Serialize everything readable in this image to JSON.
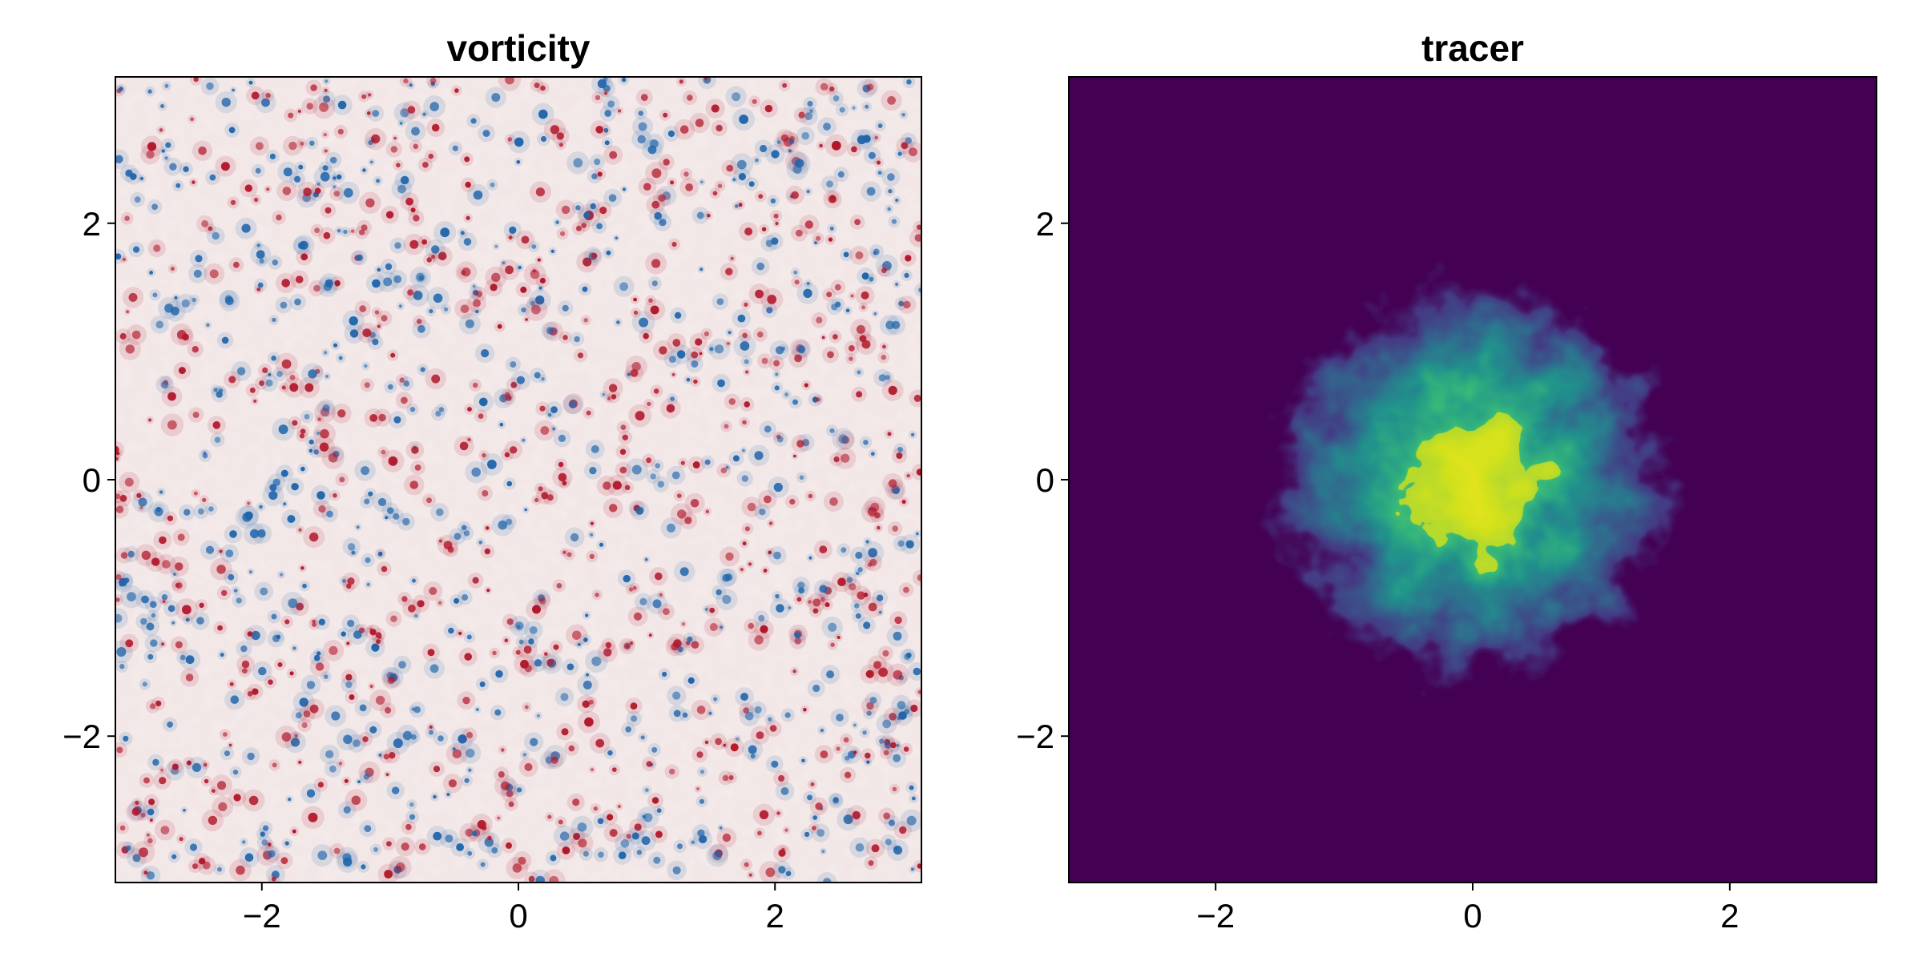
{
  "chart_data": [
    {
      "type": "heatmap",
      "title": "vorticity",
      "xlabel": "",
      "ylabel": "",
      "xlim": [
        -3.14159,
        3.14159
      ],
      "ylim": [
        -3.14159,
        3.14159
      ],
      "xticks": [
        -2,
        0,
        2
      ],
      "yticks": [
        -2,
        0,
        2
      ],
      "xtick_labels": [
        "−2",
        "0",
        "2"
      ],
      "ytick_labels": [
        "−2",
        "0",
        "2"
      ],
      "colormap": "balance (blue–white–red, diverging)",
      "background_color": "#f5eaea",
      "positive_color": "#b2182b",
      "negative_color": "#2166ac",
      "grid": false,
      "description_of_field": "many small isolated positive and negative vortices scattered uniformly over the domain with thin filaments"
    },
    {
      "type": "heatmap",
      "title": "tracer",
      "xlabel": "",
      "ylabel": "",
      "xlim": [
        -3.14159,
        3.14159
      ],
      "ylim": [
        -3.14159,
        3.14159
      ],
      "xticks": [
        -2,
        0,
        2
      ],
      "yticks": [
        -2,
        0,
        2
      ],
      "xtick_labels": [
        "−2",
        "0",
        "2"
      ],
      "ytick_labels": [
        "−2",
        "0",
        "2"
      ],
      "colormap": "viridis",
      "background_color": "#440154",
      "peak_color": "#fde725",
      "grid": false,
      "blob_center": [
        0.0,
        0.0
      ],
      "blob_extent_radius": 1.6,
      "description_of_field": "turbulently stirred tracer patch centered near origin, highest values at center"
    }
  ]
}
